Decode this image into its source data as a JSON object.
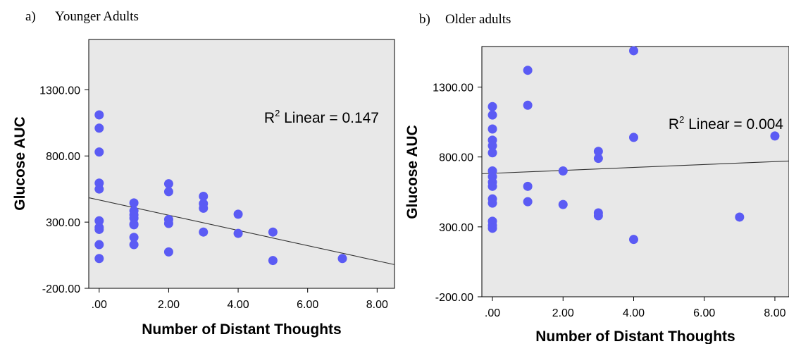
{
  "chart_data": [
    {
      "type": "scatter",
      "panel_label": "a)",
      "title": "Younger Adults",
      "xlabel": "Number of Distant Thoughts",
      "ylabel": "Glucose AUC",
      "xlim": [
        -0.3,
        8.5
      ],
      "ylim": [
        -200,
        1680
      ],
      "xticks": [
        0,
        2,
        4,
        6,
        8
      ],
      "xtick_labels": [
        ".00",
        "2.00",
        "4.00",
        "6.00",
        "8.00"
      ],
      "yticks": [
        -200,
        300,
        800,
        1300
      ],
      "ytick_labels": [
        "-200.00",
        "300.00",
        "800.00",
        "1300.00"
      ],
      "grid": false,
      "background": "#e8e8e8",
      "point_color": "#5b5bf4",
      "r2_label": {
        "prefix": "R",
        "sup": "2",
        "text": " Linear = 0.147"
      },
      "fit_line": {
        "intercept": 467,
        "slope": -57.4
      },
      "points": [
        {
          "x": 0,
          "y": 1110
        },
        {
          "x": 0,
          "y": 1010
        },
        {
          "x": 0,
          "y": 830
        },
        {
          "x": 0,
          "y": 595
        },
        {
          "x": 0,
          "y": 550
        },
        {
          "x": 0,
          "y": 310
        },
        {
          "x": 0,
          "y": 260
        },
        {
          "x": 0,
          "y": 245
        },
        {
          "x": 0,
          "y": 130
        },
        {
          "x": 0,
          "y": 25
        },
        {
          "x": 1,
          "y": 445
        },
        {
          "x": 1,
          "y": 385
        },
        {
          "x": 1,
          "y": 355
        },
        {
          "x": 1,
          "y": 330
        },
        {
          "x": 1,
          "y": 285
        },
        {
          "x": 1,
          "y": 280
        },
        {
          "x": 1,
          "y": 185
        },
        {
          "x": 1,
          "y": 130
        },
        {
          "x": 2,
          "y": 590
        },
        {
          "x": 2,
          "y": 530
        },
        {
          "x": 2,
          "y": 320
        },
        {
          "x": 2,
          "y": 290
        },
        {
          "x": 2,
          "y": 75
        },
        {
          "x": 3,
          "y": 495
        },
        {
          "x": 3,
          "y": 440
        },
        {
          "x": 3,
          "y": 405
        },
        {
          "x": 3,
          "y": 225
        },
        {
          "x": 4,
          "y": 360
        },
        {
          "x": 4,
          "y": 215
        },
        {
          "x": 5,
          "y": 225
        },
        {
          "x": 5,
          "y": 10
        },
        {
          "x": 7,
          "y": 25
        }
      ]
    },
    {
      "type": "scatter",
      "panel_label": "b)",
      "title": "Older adults",
      "xlabel": "Number of Distant Thoughts",
      "ylabel": "Glucose AUC",
      "xlim": [
        -0.3,
        8.4
      ],
      "ylim": [
        -200,
        1590
      ],
      "xticks": [
        0,
        2,
        4,
        6,
        8
      ],
      "xtick_labels": [
        ".00",
        "2.00",
        "4.00",
        "6.00",
        "8.00"
      ],
      "yticks": [
        -200,
        300,
        800,
        1300
      ],
      "ytick_labels": [
        "-200.00",
        "300.00",
        "800.00",
        "1300.00"
      ],
      "grid": false,
      "background": "#e8e8e8",
      "point_color": "#5b5bf4",
      "r2_label": {
        "prefix": "R",
        "sup": "2",
        "text": " Linear = 0.004"
      },
      "fit_line": {
        "intercept": 683,
        "slope": 10.5
      },
      "points": [
        {
          "x": 0,
          "y": 1160
        },
        {
          "x": 0,
          "y": 1100
        },
        {
          "x": 0,
          "y": 1000
        },
        {
          "x": 0,
          "y": 920
        },
        {
          "x": 0,
          "y": 880
        },
        {
          "x": 0,
          "y": 830
        },
        {
          "x": 0,
          "y": 700
        },
        {
          "x": 0,
          "y": 660
        },
        {
          "x": 0,
          "y": 620
        },
        {
          "x": 0,
          "y": 590
        },
        {
          "x": 0,
          "y": 500
        },
        {
          "x": 0,
          "y": 470
        },
        {
          "x": 0,
          "y": 340
        },
        {
          "x": 0,
          "y": 310
        },
        {
          "x": 0,
          "y": 290
        },
        {
          "x": 1,
          "y": 1420
        },
        {
          "x": 1,
          "y": 1170
        },
        {
          "x": 1,
          "y": 590
        },
        {
          "x": 1,
          "y": 480
        },
        {
          "x": 2,
          "y": 700
        },
        {
          "x": 2,
          "y": 460
        },
        {
          "x": 3,
          "y": 840
        },
        {
          "x": 3,
          "y": 790
        },
        {
          "x": 3,
          "y": 400
        },
        {
          "x": 3,
          "y": 380
        },
        {
          "x": 4,
          "y": 1560
        },
        {
          "x": 4,
          "y": 940
        },
        {
          "x": 4,
          "y": 210
        },
        {
          "x": 7,
          "y": 370
        },
        {
          "x": 8,
          "y": 950
        }
      ]
    }
  ]
}
